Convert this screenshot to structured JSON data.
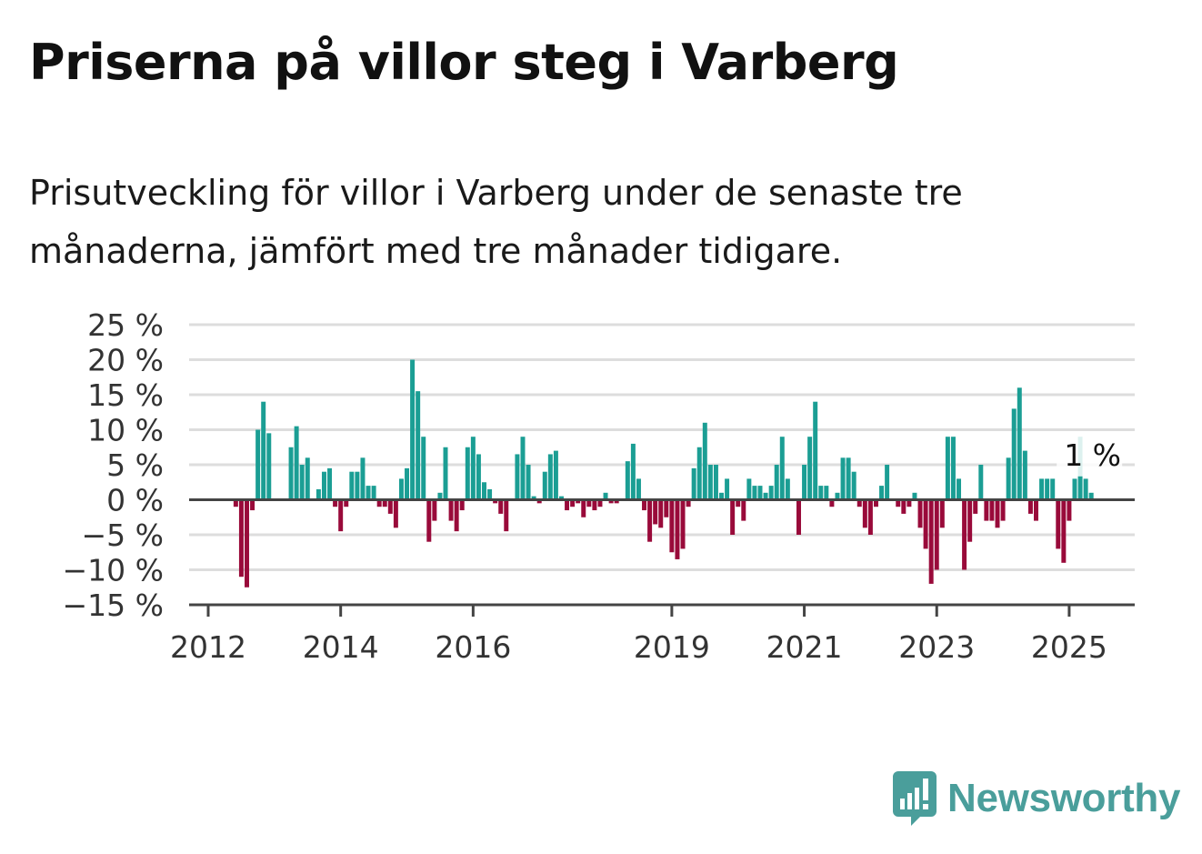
{
  "title": "Priserna på villor steg i Varberg",
  "subtitle": "Prisutveckling för villor i Varberg under de senaste tre månaderna, jämfört med tre månader tidigare.",
  "logo_text": "Newsworthy",
  "colors": {
    "positive": "#1b9e94",
    "negative": "#990a3a",
    "grid": "#dddddd",
    "axis": "#444444",
    "brand": "#4a9e9b"
  },
  "chart_data": {
    "type": "bar",
    "x_start": "2012-01",
    "y_tick_labels": [
      "25 %",
      "20 %",
      "15 %",
      "10 %",
      "5 %",
      "0 %",
      "−5 %",
      "−10 %",
      "−15 %"
    ],
    "y_ticks": [
      25,
      20,
      15,
      10,
      5,
      0,
      -5,
      -10,
      -15
    ],
    "ylim": [
      -15,
      25
    ],
    "x_tick_labels": [
      "2012",
      "2014",
      "2016",
      "2019",
      "2021",
      "2023",
      "2025"
    ],
    "x_tick_months": [
      0,
      24,
      48,
      84,
      108,
      132,
      156
    ],
    "annotation": "1 %",
    "grid": true,
    "values": [
      0,
      0,
      0,
      0,
      0,
      -1,
      -11,
      -12.5,
      -1.5,
      10,
      14,
      9.5,
      0,
      0,
      0,
      7.5,
      10.5,
      5,
      6,
      0,
      1.5,
      4,
      4.5,
      -1,
      -4.5,
      -1,
      4,
      4,
      6,
      2,
      2,
      -1,
      -1,
      -2,
      -4,
      3,
      4.5,
      20,
      15.5,
      9,
      -6,
      -3,
      1,
      7.5,
      -3,
      -4.5,
      -1.5,
      7.5,
      9,
      6.5,
      2.5,
      1.5,
      -0.5,
      -2,
      -4.5,
      0,
      6.5,
      9,
      5,
      0.5,
      -0.5,
      4,
      6.5,
      7,
      0.5,
      -1.5,
      -1,
      -0.5,
      -2.5,
      -1,
      -1.5,
      -1,
      1,
      -0.5,
      -0.5,
      0,
      5.5,
      8,
      3,
      -1.5,
      -6,
      -3.5,
      -4,
      -2.5,
      -7.5,
      -8.5,
      -7,
      -1,
      4.5,
      7.5,
      11,
      5,
      5,
      1,
      3,
      -5,
      -1,
      -3,
      3,
      2,
      2,
      1,
      2,
      5,
      9,
      3,
      0,
      -5,
      5,
      9,
      14,
      2,
      2,
      -1,
      1,
      6,
      6,
      4,
      -1,
      -4,
      -5,
      -1,
      2,
      5,
      0,
      -1,
      -2,
      -1,
      1,
      -4,
      -7,
      -12,
      -10,
      -4,
      9,
      9,
      3,
      -10,
      -6,
      -2,
      5,
      -3,
      -3,
      -4,
      -3,
      6,
      13,
      16,
      7,
      -2,
      -3,
      3,
      3,
      3,
      -7,
      -9,
      -3,
      3,
      9,
      3,
      1
    ]
  }
}
